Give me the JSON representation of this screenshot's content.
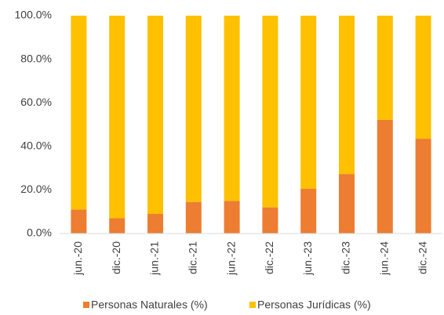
{
  "chart_data": {
    "type": "stacked_bar",
    "categories": [
      "jun.-20",
      "dic.-20",
      "jun.-21",
      "dic.-21",
      "jun.-22",
      "dic.-22",
      "jun.-23",
      "dic.-23",
      "jun.-24",
      "dic.-24"
    ],
    "series": [
      {
        "name": "Personas Naturales (%)",
        "color": "#ED7D31",
        "values": [
          11,
          7,
          9,
          14.5,
          15,
          12,
          20.5,
          27.3,
          52.2,
          43.5
        ]
      },
      {
        "name": "Personas Jurídicas (%)",
        "color": "#FFC000",
        "values": [
          89,
          93,
          91,
          85.5,
          85,
          88,
          79.5,
          72.7,
          47.8,
          56.5
        ]
      }
    ],
    "ylim": [
      0,
      100
    ],
    "yticks": [
      {
        "value": 0,
        "label": "0.0%"
      },
      {
        "value": 20,
        "label": "20.0%"
      },
      {
        "value": 40,
        "label": "40.0%"
      },
      {
        "value": 60,
        "label": "60.0%"
      },
      {
        "value": 80,
        "label": "80.0%"
      },
      {
        "value": 100,
        "label": "100.0%"
      }
    ],
    "grid": false
  }
}
